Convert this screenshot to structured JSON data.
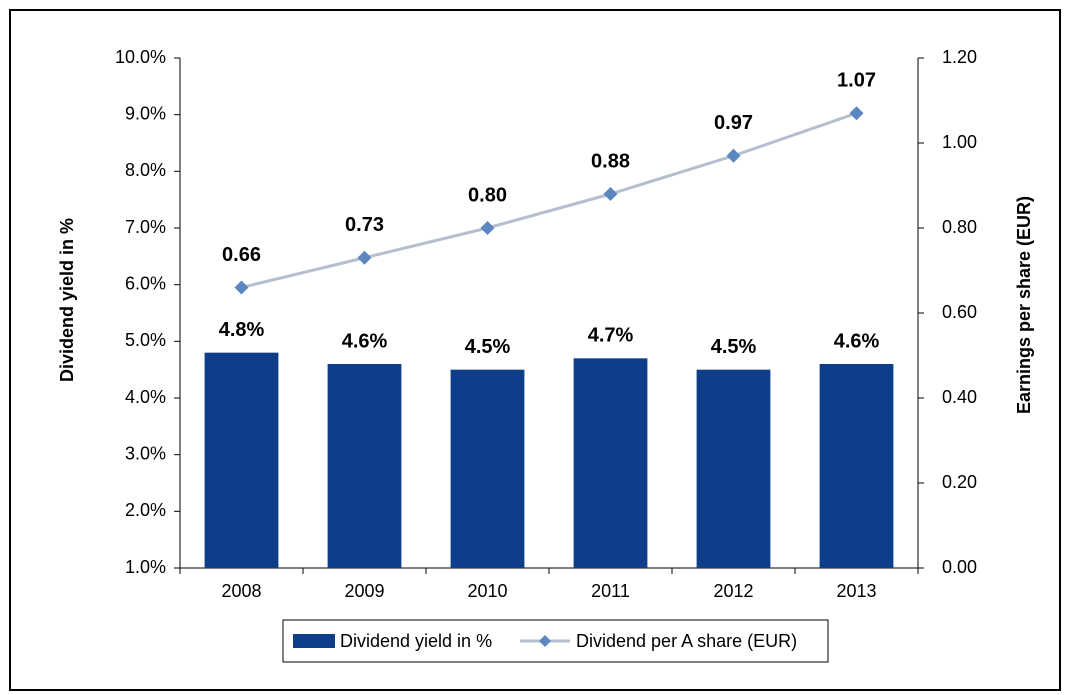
{
  "chart_data": {
    "type": "bar_line",
    "categories": [
      "2008",
      "2009",
      "2010",
      "2011",
      "2012",
      "2013"
    ],
    "ylabel": "Dividend yield in %",
    "y2label": "Earnings per share (EUR)",
    "ylim": [
      1,
      10
    ],
    "yticks": [
      {
        "value": 1,
        "label": "1.0%"
      },
      {
        "value": 2,
        "label": "2.0%"
      },
      {
        "value": 3,
        "label": "3.0%"
      },
      {
        "value": 4,
        "label": "4.0%"
      },
      {
        "value": 5,
        "label": "5.0%"
      },
      {
        "value": 6,
        "label": "6.0%"
      },
      {
        "value": 7,
        "label": "7.0%"
      },
      {
        "value": 8,
        "label": "8.0%"
      },
      {
        "value": 9,
        "label": "9.0%"
      },
      {
        "value": 10,
        "label": "10.0%"
      }
    ],
    "y2lim": [
      0,
      1.2
    ],
    "y2ticks": [
      {
        "value": 0,
        "label": "0.00"
      },
      {
        "value": 0.2,
        "label": "0.20"
      },
      {
        "value": 0.4,
        "label": "0.40"
      },
      {
        "value": 0.6,
        "label": "0.60"
      },
      {
        "value": 0.8,
        "label": "0.80"
      },
      {
        "value": 1,
        "label": "1.00"
      },
      {
        "value": 1.2,
        "label": "1.20"
      }
    ],
    "series": [
      {
        "name": "Dividend yield in %",
        "type": "bar",
        "color": "#0e3d8a",
        "values": [
          4.8,
          4.6,
          4.5,
          4.7,
          4.5,
          4.6
        ],
        "value_labels": [
          "4.8%",
          "4.6%",
          "4.5%",
          "4.7%",
          "4.5%",
          "4.6%"
        ]
      },
      {
        "name": "Dividend per A share (EUR)",
        "type": "line",
        "axis": "y2",
        "color": "#b3bfcf",
        "marker_color": "#5b86c0",
        "values": [
          0.66,
          0.73,
          0.8,
          0.88,
          0.97,
          1.07
        ],
        "value_labels": [
          "0.66",
          "0.73",
          "0.80",
          "0.88",
          "0.97",
          "1.07"
        ]
      }
    ]
  }
}
